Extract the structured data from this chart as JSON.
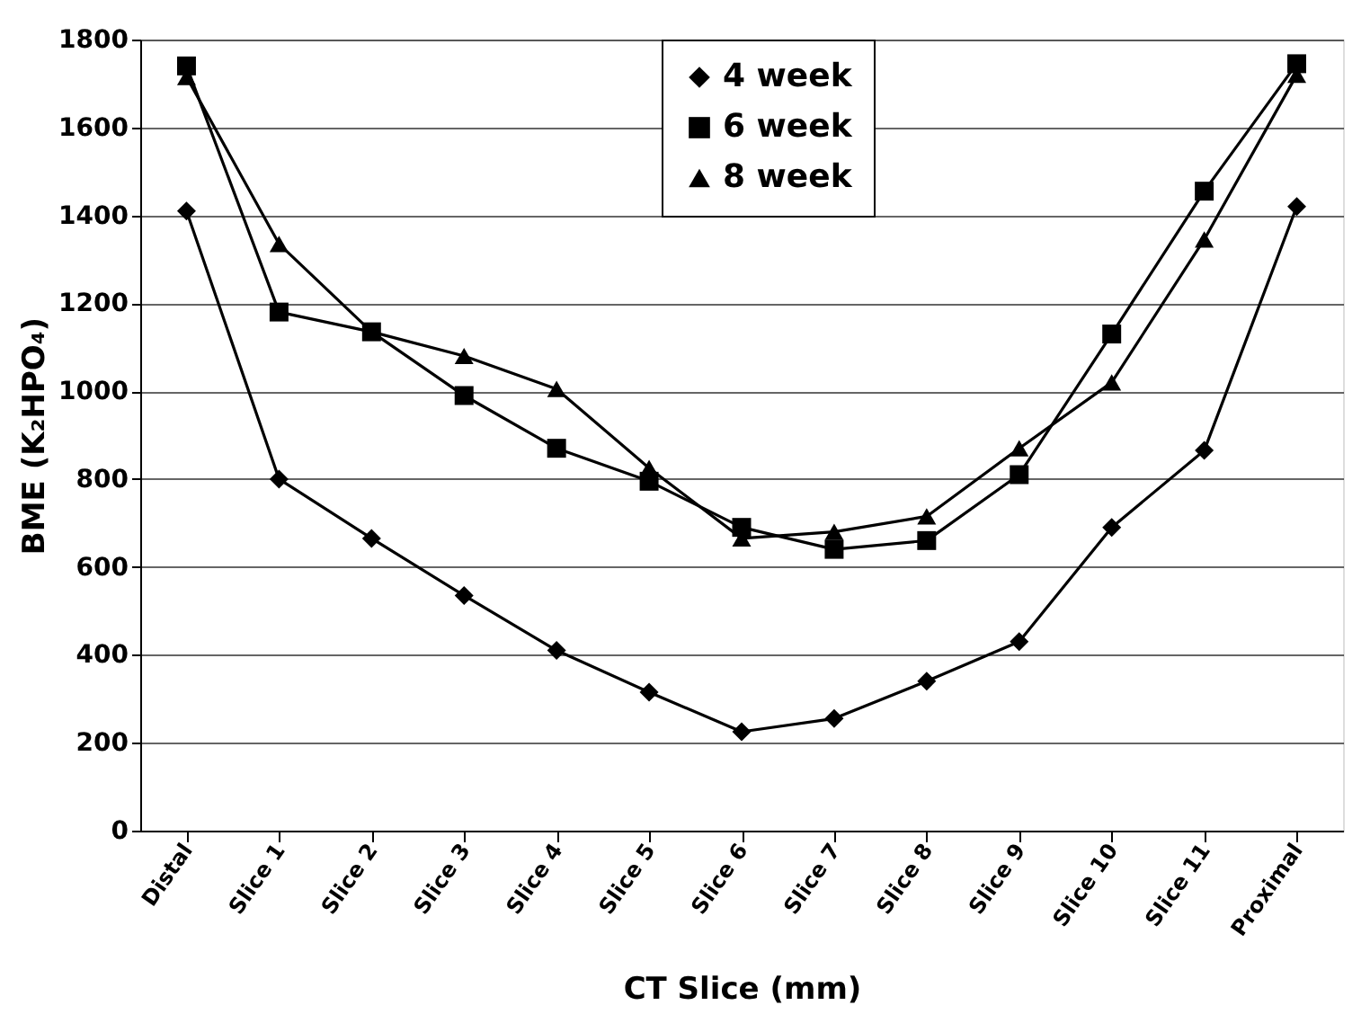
{
  "chart_data": {
    "type": "line",
    "xlabel": "CT Slice (mm)",
    "ylabel": "BME (K₂HPO₄)",
    "categories": [
      "Distal",
      "Slice 1",
      "Slice 2",
      "Slice 3",
      "Slice 4",
      "Slice 5",
      "Slice 6",
      "Slice 7",
      "Slice 8",
      "Slice 9",
      "Slice 10",
      "Slice 11",
      "Proximal"
    ],
    "series": [
      {
        "name": "4 week",
        "color": "#000000",
        "marker": "diamond",
        "values": [
          1410,
          800,
          665,
          535,
          410,
          315,
          225,
          255,
          340,
          430,
          690,
          865,
          1420
        ]
      },
      {
        "name": "6 week",
        "color": "#000000",
        "marker": "square",
        "values": [
          1740,
          1180,
          1135,
          990,
          870,
          795,
          690,
          640,
          660,
          810,
          1130,
          1455,
          1745
        ]
      },
      {
        "name": "8 week",
        "color": "#000000",
        "marker": "triangle",
        "values": [
          1715,
          1335,
          1135,
          1080,
          1005,
          825,
          665,
          680,
          715,
          870,
          1020,
          1345,
          1720
        ]
      }
    ],
    "ylim": [
      0,
      1800
    ],
    "yticks": [
      0,
      200,
      400,
      600,
      800,
      1000,
      1200,
      1400,
      1600,
      1800
    ],
    "grid": "y",
    "legend": "top",
    "line_style": "solid"
  }
}
